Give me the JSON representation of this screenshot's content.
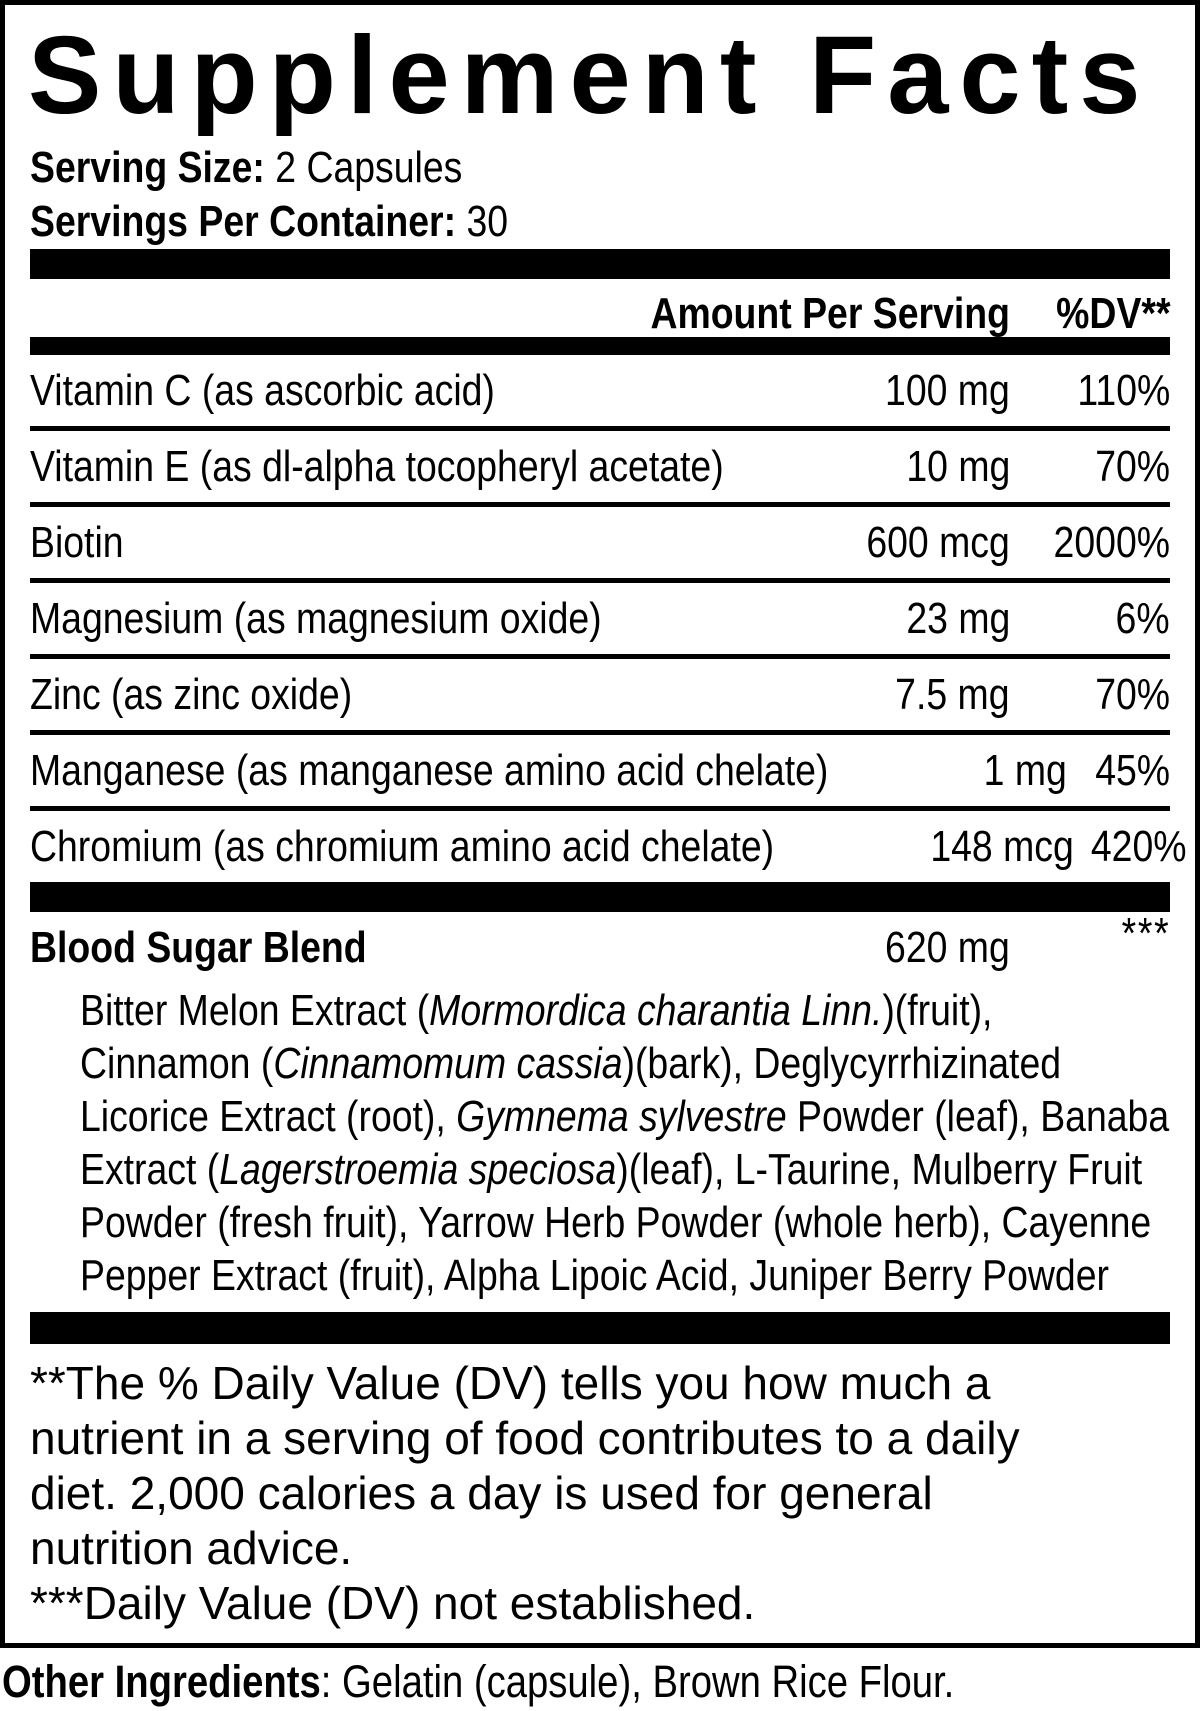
{
  "title": "Supplement Facts",
  "serving": {
    "size_label": "Serving Size:",
    "size_value": " 2 Capsules",
    "container_label": "Servings Per Container:",
    "container_value": " 30"
  },
  "table": {
    "amount_header": "Amount Per Serving",
    "dv_header": "%DV**",
    "rows": [
      {
        "name": "Vitamin C (as ascorbic acid)",
        "amount": "100 mg",
        "dv": "110%"
      },
      {
        "name": "Vitamin E (as dl-alpha tocopheryl acetate)",
        "amount": "10 mg",
        "dv": "70%"
      },
      {
        "name": "Biotin",
        "amount": "600 mcg",
        "dv": "2000%"
      },
      {
        "name": "Magnesium (as magnesium oxide)",
        "amount": "23 mg",
        "dv": "6%"
      },
      {
        "name": "Zinc (as zinc oxide)",
        "amount": "7.5 mg",
        "dv": "70%"
      },
      {
        "name": "Manganese (as manganese amino acid chelate)",
        "amount": "1 mg",
        "dv": "45%"
      },
      {
        "name": "Chromium (as chromium amino acid chelate)",
        "amount": "148 mcg",
        "dv": "420%"
      }
    ]
  },
  "blend": {
    "name": "Blood Sugar Blend",
    "amount": "620 mg",
    "dv": "***",
    "lines": [
      {
        "segments": [
          {
            "text": "Bitter Melon Extract (",
            "italic": false
          },
          {
            "text": "Mormordica charantia Linn.",
            "italic": true
          },
          {
            "text": ")(fruit),",
            "italic": false
          }
        ]
      },
      {
        "segments": [
          {
            "text": "Cinnamon (",
            "italic": false
          },
          {
            "text": "Cinnamomum cassia",
            "italic": true
          },
          {
            "text": ")(bark), Deglycyrrhizinated",
            "italic": false
          }
        ]
      },
      {
        "segments": [
          {
            "text": "Licorice Extract (root), ",
            "italic": false
          },
          {
            "text": "Gymnema sylvestre",
            "italic": true
          },
          {
            "text": " Powder (leaf), Banaba",
            "italic": false
          }
        ]
      },
      {
        "segments": [
          {
            "text": "Extract (",
            "italic": false
          },
          {
            "text": "Lagerstroemia speciosa",
            "italic": true
          },
          {
            "text": ")(leaf), L-Taurine, Mulberry Fruit",
            "italic": false
          }
        ]
      },
      {
        "segments": [
          {
            "text": "Powder (fresh fruit), Yarrow Herb Powder (whole herb), Cayenne",
            "italic": false
          }
        ]
      },
      {
        "segments": [
          {
            "text": "Pepper Extract (fruit), Alpha Lipoic Acid, Juniper Berry Powder",
            "italic": false
          }
        ]
      }
    ]
  },
  "footnotes": {
    "lines": [
      "**The % Daily Value (DV) tells you how much a",
      "nutrient in a serving of food contributes to a daily",
      "diet. 2,000 calories a day is used for general",
      "nutrition advice.",
      "***Daily Value (DV) not established."
    ]
  },
  "other_ingredients": {
    "label": "Other Ingredients",
    "value": ": Gelatin (capsule), Brown Rice Flour."
  },
  "colors": {
    "ink": "#000000",
    "background": "#ffffff"
  }
}
